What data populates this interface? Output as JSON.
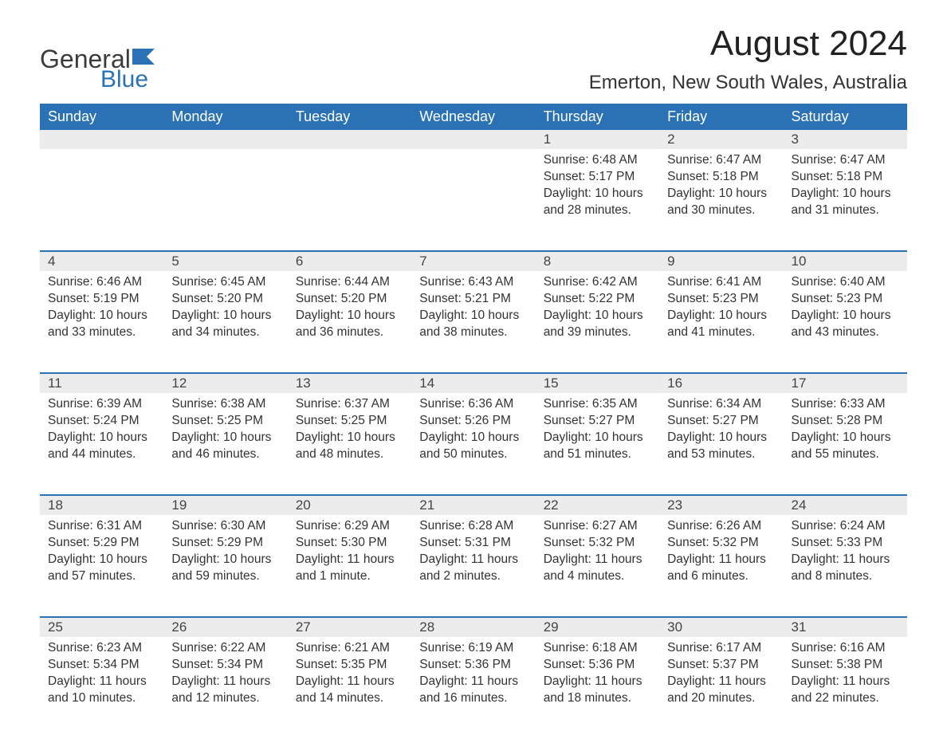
{
  "logo": {
    "text_general": "General",
    "text_blue": "Blue",
    "icon_color": "#2a72b5"
  },
  "title": "August 2024",
  "location": "Emerton, New South Wales, Australia",
  "header_bg": "#2a72b5",
  "daynum_bg": "#ececec",
  "days_of_week": [
    "Sunday",
    "Monday",
    "Tuesday",
    "Wednesday",
    "Thursday",
    "Friday",
    "Saturday"
  ],
  "weeks": [
    [
      null,
      null,
      null,
      null,
      {
        "n": "1",
        "sunrise": "Sunrise: 6:48 AM",
        "sunset": "Sunset: 5:17 PM",
        "daylight": "Daylight: 10 hours and 28 minutes."
      },
      {
        "n": "2",
        "sunrise": "Sunrise: 6:47 AM",
        "sunset": "Sunset: 5:18 PM",
        "daylight": "Daylight: 10 hours and 30 minutes."
      },
      {
        "n": "3",
        "sunrise": "Sunrise: 6:47 AM",
        "sunset": "Sunset: 5:18 PM",
        "daylight": "Daylight: 10 hours and 31 minutes."
      }
    ],
    [
      {
        "n": "4",
        "sunrise": "Sunrise: 6:46 AM",
        "sunset": "Sunset: 5:19 PM",
        "daylight": "Daylight: 10 hours and 33 minutes."
      },
      {
        "n": "5",
        "sunrise": "Sunrise: 6:45 AM",
        "sunset": "Sunset: 5:20 PM",
        "daylight": "Daylight: 10 hours and 34 minutes."
      },
      {
        "n": "6",
        "sunrise": "Sunrise: 6:44 AM",
        "sunset": "Sunset: 5:20 PM",
        "daylight": "Daylight: 10 hours and 36 minutes."
      },
      {
        "n": "7",
        "sunrise": "Sunrise: 6:43 AM",
        "sunset": "Sunset: 5:21 PM",
        "daylight": "Daylight: 10 hours and 38 minutes."
      },
      {
        "n": "8",
        "sunrise": "Sunrise: 6:42 AM",
        "sunset": "Sunset: 5:22 PM",
        "daylight": "Daylight: 10 hours and 39 minutes."
      },
      {
        "n": "9",
        "sunrise": "Sunrise: 6:41 AM",
        "sunset": "Sunset: 5:23 PM",
        "daylight": "Daylight: 10 hours and 41 minutes."
      },
      {
        "n": "10",
        "sunrise": "Sunrise: 6:40 AM",
        "sunset": "Sunset: 5:23 PM",
        "daylight": "Daylight: 10 hours and 43 minutes."
      }
    ],
    [
      {
        "n": "11",
        "sunrise": "Sunrise: 6:39 AM",
        "sunset": "Sunset: 5:24 PM",
        "daylight": "Daylight: 10 hours and 44 minutes."
      },
      {
        "n": "12",
        "sunrise": "Sunrise: 6:38 AM",
        "sunset": "Sunset: 5:25 PM",
        "daylight": "Daylight: 10 hours and 46 minutes."
      },
      {
        "n": "13",
        "sunrise": "Sunrise: 6:37 AM",
        "sunset": "Sunset: 5:25 PM",
        "daylight": "Daylight: 10 hours and 48 minutes."
      },
      {
        "n": "14",
        "sunrise": "Sunrise: 6:36 AM",
        "sunset": "Sunset: 5:26 PM",
        "daylight": "Daylight: 10 hours and 50 minutes."
      },
      {
        "n": "15",
        "sunrise": "Sunrise: 6:35 AM",
        "sunset": "Sunset: 5:27 PM",
        "daylight": "Daylight: 10 hours and 51 minutes."
      },
      {
        "n": "16",
        "sunrise": "Sunrise: 6:34 AM",
        "sunset": "Sunset: 5:27 PM",
        "daylight": "Daylight: 10 hours and 53 minutes."
      },
      {
        "n": "17",
        "sunrise": "Sunrise: 6:33 AM",
        "sunset": "Sunset: 5:28 PM",
        "daylight": "Daylight: 10 hours and 55 minutes."
      }
    ],
    [
      {
        "n": "18",
        "sunrise": "Sunrise: 6:31 AM",
        "sunset": "Sunset: 5:29 PM",
        "daylight": "Daylight: 10 hours and 57 minutes."
      },
      {
        "n": "19",
        "sunrise": "Sunrise: 6:30 AM",
        "sunset": "Sunset: 5:29 PM",
        "daylight": "Daylight: 10 hours and 59 minutes."
      },
      {
        "n": "20",
        "sunrise": "Sunrise: 6:29 AM",
        "sunset": "Sunset: 5:30 PM",
        "daylight": "Daylight: 11 hours and 1 minute."
      },
      {
        "n": "21",
        "sunrise": "Sunrise: 6:28 AM",
        "sunset": "Sunset: 5:31 PM",
        "daylight": "Daylight: 11 hours and 2 minutes."
      },
      {
        "n": "22",
        "sunrise": "Sunrise: 6:27 AM",
        "sunset": "Sunset: 5:32 PM",
        "daylight": "Daylight: 11 hours and 4 minutes."
      },
      {
        "n": "23",
        "sunrise": "Sunrise: 6:26 AM",
        "sunset": "Sunset: 5:32 PM",
        "daylight": "Daylight: 11 hours and 6 minutes."
      },
      {
        "n": "24",
        "sunrise": "Sunrise: 6:24 AM",
        "sunset": "Sunset: 5:33 PM",
        "daylight": "Daylight: 11 hours and 8 minutes."
      }
    ],
    [
      {
        "n": "25",
        "sunrise": "Sunrise: 6:23 AM",
        "sunset": "Sunset: 5:34 PM",
        "daylight": "Daylight: 11 hours and 10 minutes."
      },
      {
        "n": "26",
        "sunrise": "Sunrise: 6:22 AM",
        "sunset": "Sunset: 5:34 PM",
        "daylight": "Daylight: 11 hours and 12 minutes."
      },
      {
        "n": "27",
        "sunrise": "Sunrise: 6:21 AM",
        "sunset": "Sunset: 5:35 PM",
        "daylight": "Daylight: 11 hours and 14 minutes."
      },
      {
        "n": "28",
        "sunrise": "Sunrise: 6:19 AM",
        "sunset": "Sunset: 5:36 PM",
        "daylight": "Daylight: 11 hours and 16 minutes."
      },
      {
        "n": "29",
        "sunrise": "Sunrise: 6:18 AM",
        "sunset": "Sunset: 5:36 PM",
        "daylight": "Daylight: 11 hours and 18 minutes."
      },
      {
        "n": "30",
        "sunrise": "Sunrise: 6:17 AM",
        "sunset": "Sunset: 5:37 PM",
        "daylight": "Daylight: 11 hours and 20 minutes."
      },
      {
        "n": "31",
        "sunrise": "Sunrise: 6:16 AM",
        "sunset": "Sunset: 5:38 PM",
        "daylight": "Daylight: 11 hours and 22 minutes."
      }
    ]
  ]
}
